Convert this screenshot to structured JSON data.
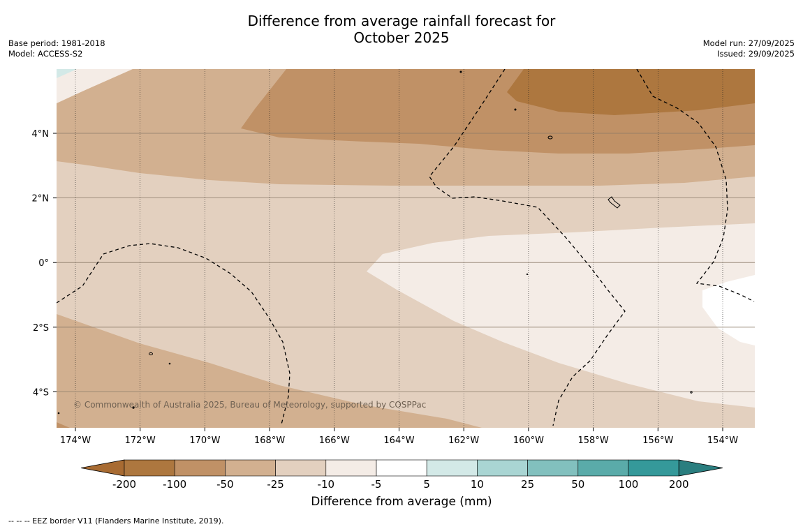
{
  "title": {
    "line1": "Difference from average rainfall forecast for",
    "line2": "October 2025"
  },
  "meta": {
    "base_period": "Base period: 1981-2018",
    "model": "Model: ACCESS-S2",
    "model_run": "Model run: 27/09/2025",
    "issued": "Issued: 29/09/2025"
  },
  "map": {
    "lon_labels": [
      "174°W",
      "172°W",
      "170°W",
      "168°W",
      "166°W",
      "164°W",
      "162°W",
      "160°W",
      "158°W",
      "156°W",
      "154°W"
    ],
    "lat_labels": [
      "4°N",
      "2°N",
      "0°",
      "2°S",
      "4°S"
    ],
    "copyright": "© Commonwealth of Australia 2025, Bureau of Meteorology, supported by COSPPac"
  },
  "colorbar": {
    "ticks": [
      "-200",
      "-100",
      "-50",
      "-25",
      "-10",
      "-5",
      "5",
      "10",
      "25",
      "50",
      "100",
      "200"
    ],
    "colors": [
      "#a86b32",
      "#ad773f",
      "#c09166",
      "#d2b090",
      "#e3d0bf",
      "#f4ece6",
      "#ffffff",
      "#d3e9e7",
      "#a9d5d3",
      "#82c0be",
      "#5aaba9",
      "#35999a",
      "#2a7e7f"
    ],
    "label": "Difference from average (mm)"
  },
  "footer": {
    "legend": "-- -- -- EEZ border V11 (Flanders Marine Institute, 2019)."
  }
}
